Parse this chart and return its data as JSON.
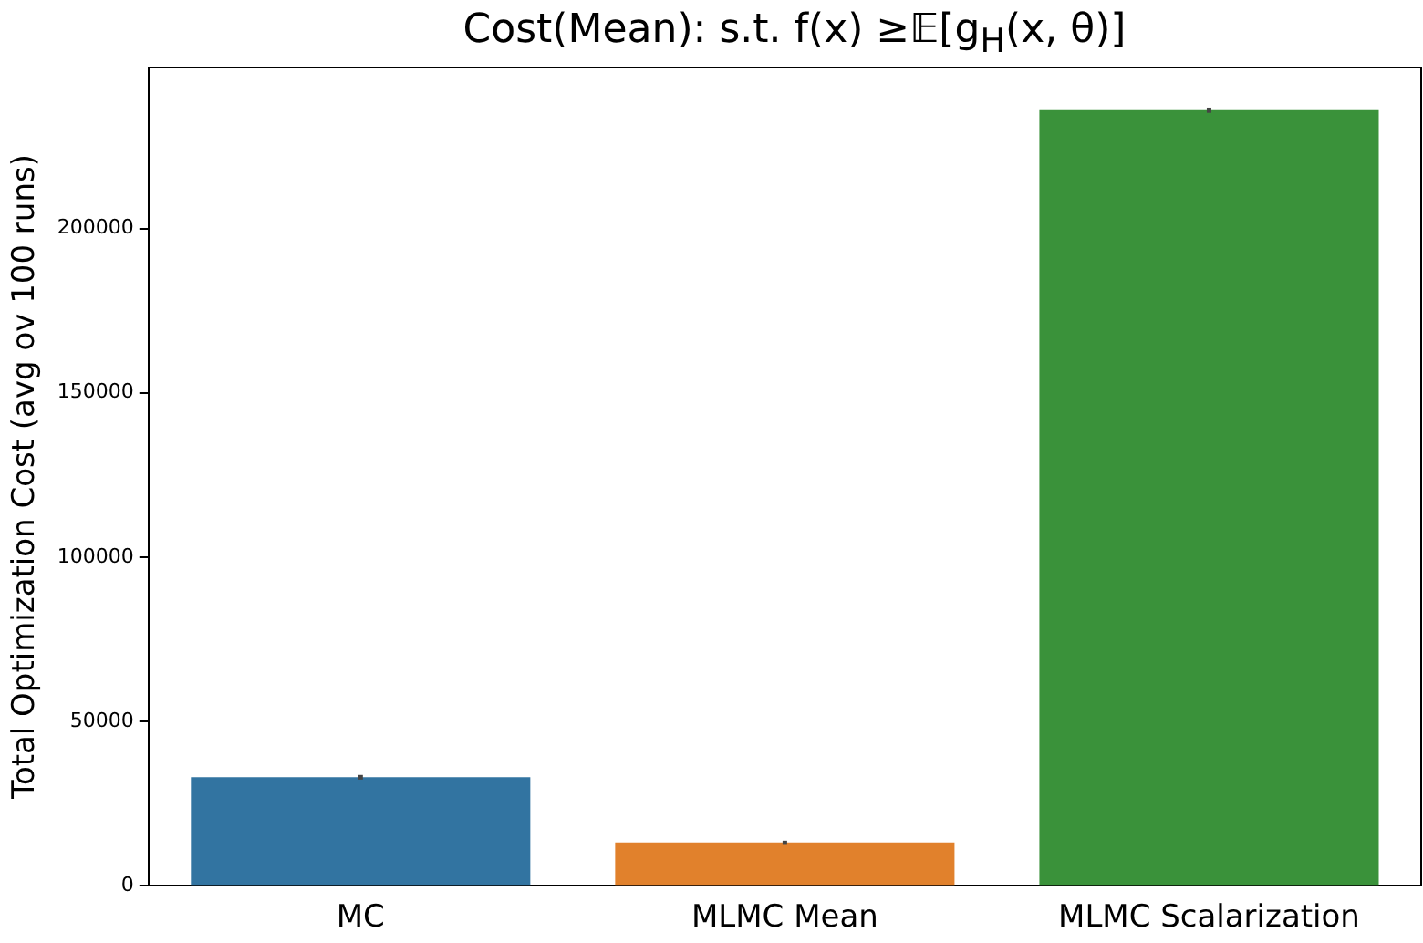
{
  "chart_data": {
    "type": "bar",
    "title": "Cost(Mean): s.t. f(x) ≥𝔼[g$_{H}$(x, θ)]",
    "ylabel": "Total Optimization Cost (avg ov 100 runs)",
    "categories": [
      "MC",
      "MLMC Mean",
      "MLMC Scalarization"
    ],
    "values": [
      33000,
      13200,
      236000
    ],
    "errors": [
      700,
      500,
      800
    ],
    "colors": [
      "#3274a1",
      "#e1812c",
      "#3a923a"
    ],
    "ylim": [
      0,
      249000
    ],
    "yticks": [
      0,
      50000,
      100000,
      150000,
      200000
    ],
    "grid": false,
    "legend": false
  }
}
